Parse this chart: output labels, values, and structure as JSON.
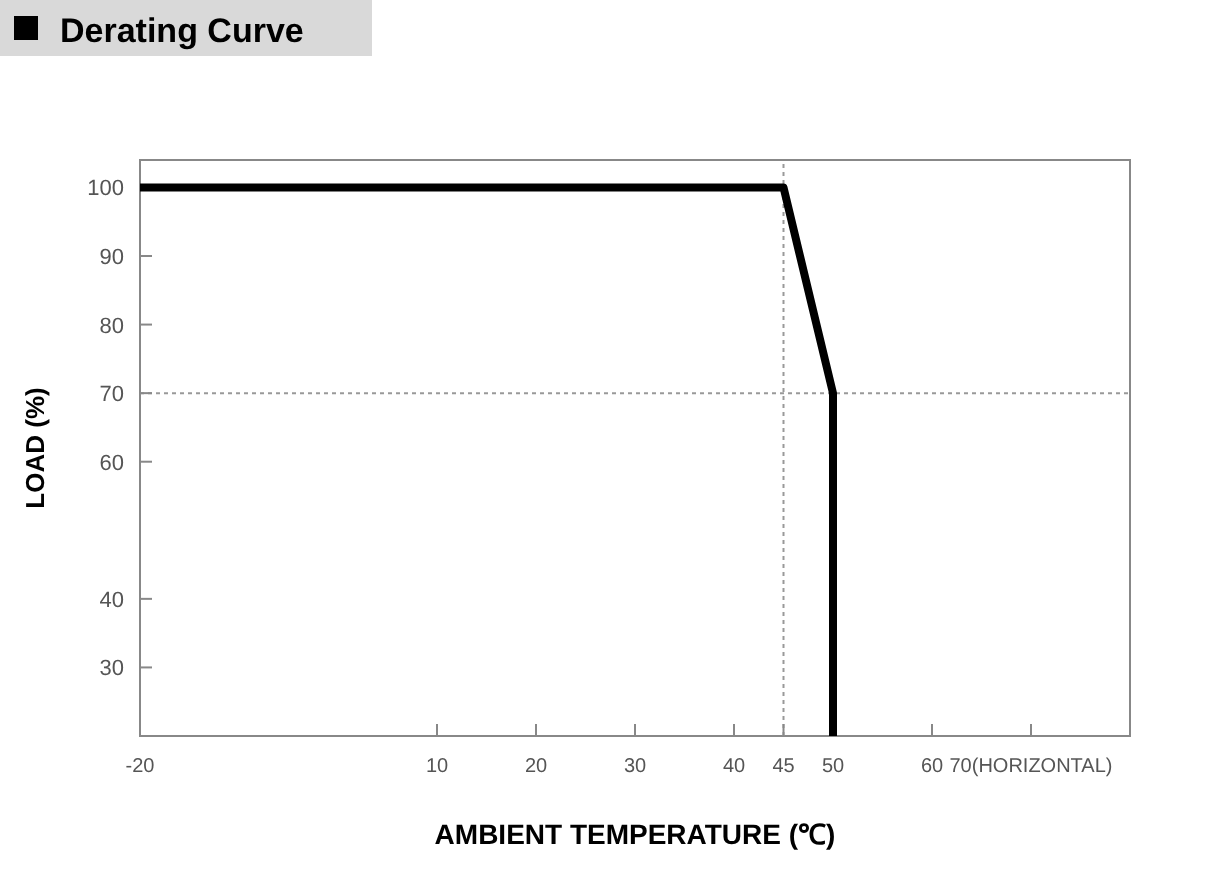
{
  "chart_data": {
    "type": "line",
    "title": "Derating Curve",
    "xlabel": "AMBIENT TEMPERATURE (℃)",
    "ylabel": "LOAD (%)",
    "x": [
      -20,
      45,
      50,
      50
    ],
    "series": [
      {
        "color": "#000000",
        "values": [
          100,
          100,
          70,
          20
        ]
      }
    ],
    "xlim": [
      -20,
      80
    ],
    "xticks": [
      -20,
      10,
      20,
      30,
      40,
      45,
      50,
      60,
      {
        "value": 70,
        "label": "70(HORIZONTAL)"
      }
    ],
    "ylim": [
      20,
      104
    ],
    "yticks": [
      30,
      40,
      60,
      70,
      80,
      90,
      100
    ],
    "ref_lines": [
      {
        "axis": "y",
        "value": 70,
        "color": "#999999",
        "line_style": "dotted"
      },
      {
        "axis": "x",
        "value": 45,
        "color": "#999999",
        "line_style": "dotted"
      }
    ],
    "marker": "none",
    "line_style": "solid",
    "grid": false
  }
}
